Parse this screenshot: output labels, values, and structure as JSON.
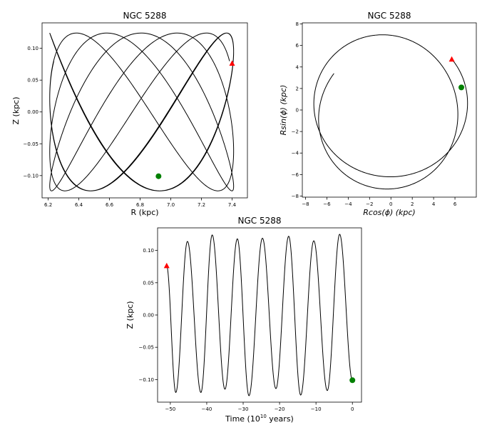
{
  "chart_data": [
    {
      "type": "line",
      "title": "NGC 5288",
      "xlabel": "R (kpc)",
      "ylabel": "Z (kpc)",
      "xlim": [
        6.16,
        7.5
      ],
      "ylim": [
        -0.135,
        0.14
      ],
      "xticks": [
        6.2,
        6.4,
        6.6,
        6.8,
        7.0,
        7.2,
        7.4
      ],
      "xtick_labels": [
        "6.2",
        "6.4",
        "6.6",
        "6.8",
        "7.0",
        "7.2",
        "7.4"
      ],
      "yticks": [
        0.1,
        0.05,
        0.0,
        -0.05,
        -0.1
      ],
      "ytick_labels": [
        "0.10",
        "0.05",
        "0.00",
        "−0.05",
        "−0.10"
      ],
      "grid": false,
      "series": [
        {
          "color": "#000000",
          "description_of_shape": "orbit in meridional plane, box orbit filling R 6.21–7.41 kpc, Z −0.125–0.125 kpc",
          "R_min": 6.21,
          "R_max": 7.41,
          "Z_amplitude": 0.124,
          "Z_periods": 8,
          "R_periods": 4.5
        }
      ],
      "markers": [
        {
          "kind": "start",
          "shape": "triangle",
          "color": "#ff0000",
          "x": 7.4,
          "y": 0.076
        },
        {
          "kind": "end",
          "shape": "circle",
          "color": "#008000",
          "x": 6.92,
          "y": -0.101
        }
      ]
    },
    {
      "type": "line",
      "title": "NGC 5288",
      "xlabel": "Rcos(ϕ) (kpc)",
      "ylabel": "Rsin(ϕ) (kpc)",
      "xlim": [
        -8.3,
        8.0
      ],
      "ylim": [
        -8.1,
        8.1
      ],
      "xticks": [
        -8,
        -6,
        -4,
        -2,
        0,
        2,
        4,
        6
      ],
      "xtick_labels": [
        "−8",
        "−6",
        "−4",
        "−2",
        "0",
        "2",
        "4",
        "6"
      ],
      "yticks": [
        8,
        6,
        4,
        2,
        0,
        -2,
        -4,
        -6,
        -8
      ],
      "ytick_labels": [
        "8",
        "6",
        "4",
        "2",
        "0",
        "−2",
        "−4",
        "−6",
        "−8"
      ],
      "grid": false,
      "series": [
        {
          "color": "#000000",
          "description_of_shape": "near-circular galactic orbit, radius oscillating 6.2–7.4 kpc",
          "R_min": 6.21,
          "R_max": 7.41,
          "turns": 1.7
        }
      ],
      "markers": [
        {
          "kind": "start",
          "shape": "triangle",
          "color": "#ff0000",
          "x": 5.7,
          "y": 4.7
        },
        {
          "kind": "end",
          "shape": "circle",
          "color": "#008000",
          "x": 6.6,
          "y": 2.1
        }
      ]
    },
    {
      "type": "line",
      "title": "NGC 5288",
      "xlabel_prefix": "Time (10",
      "xlabel_exponent": "10",
      "xlabel_suffix": " years)",
      "ylabel": "Z (kpc)",
      "xlim": [
        -53.5,
        2.5
      ],
      "ylim": [
        -0.135,
        0.135
      ],
      "xticks": [
        -50,
        -40,
        -30,
        -20,
        -10,
        0
      ],
      "xtick_labels": [
        "−50",
        "−40",
        "−30",
        "−20",
        "−10",
        "0"
      ],
      "yticks": [
        0.1,
        0.05,
        0.0,
        -0.05,
        -0.1
      ],
      "ytick_labels": [
        "0.10",
        "0.05",
        "0.00",
        "−0.05",
        "−0.10"
      ],
      "grid": false,
      "series": [
        {
          "color": "#000000",
          "description_of_shape": "vertical oscillation of Z over time",
          "extrema": [
            {
              "t": -51.0,
              "z": 0.076
            },
            {
              "t": -48.5,
              "z": -0.12
            },
            {
              "t": -45.3,
              "z": 0.114
            },
            {
              "t": -41.6,
              "z": -0.12
            },
            {
              "t": -38.5,
              "z": 0.124
            },
            {
              "t": -35.0,
              "z": -0.115
            },
            {
              "t": -31.6,
              "z": 0.118
            },
            {
              "t": -28.4,
              "z": -0.125
            },
            {
              "t": -24.7,
              "z": 0.119
            },
            {
              "t": -21.0,
              "z": -0.114
            },
            {
              "t": -17.5,
              "z": 0.122
            },
            {
              "t": -14.2,
              "z": -0.124
            },
            {
              "t": -10.6,
              "z": 0.115
            },
            {
              "t": -6.9,
              "z": -0.117
            },
            {
              "t": -3.5,
              "z": 0.125
            },
            {
              "t": 0.0,
              "z": -0.101
            }
          ]
        }
      ],
      "markers": [
        {
          "kind": "start",
          "shape": "triangle",
          "color": "#ff0000",
          "x": -51.0,
          "y": 0.076
        },
        {
          "kind": "end",
          "shape": "circle",
          "color": "#008000",
          "x": 0.0,
          "y": -0.101
        }
      ]
    }
  ]
}
